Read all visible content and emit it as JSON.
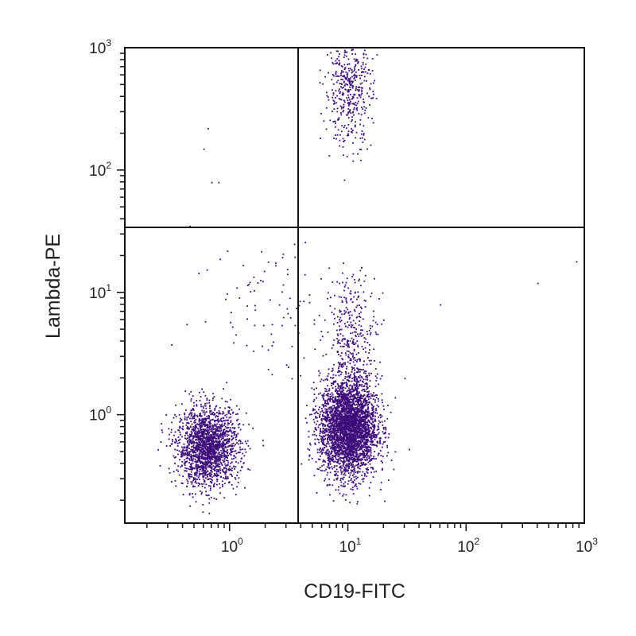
{
  "chart_data": {
    "type": "scatter",
    "title": "",
    "xlabel": "CD19-FITC",
    "ylabel": "Lambda-PE",
    "xscale": "log",
    "yscale": "log",
    "xlim": [
      0.13,
      1000
    ],
    "ylim": [
      0.13,
      1000
    ],
    "x_ticks": [
      {
        "base": "10",
        "exp": "0",
        "value": 1
      },
      {
        "base": "10",
        "exp": "1",
        "value": 10
      },
      {
        "base": "10",
        "exp": "2",
        "value": 100
      },
      {
        "base": "10",
        "exp": "3",
        "value": 1000
      }
    ],
    "y_ticks": [
      {
        "base": "10",
        "exp": "0",
        "value": 1
      },
      {
        "base": "10",
        "exp": "1",
        "value": 10
      },
      {
        "base": "10",
        "exp": "2",
        "value": 100
      },
      {
        "base": "10",
        "exp": "3",
        "value": 1000
      }
    ],
    "quadrant_gates": {
      "x": 3.8,
      "y": 34
    },
    "grid": false,
    "legend": "none",
    "point_color": "#3d0a7a",
    "populations": [
      {
        "label": "CD19-negative, Lambda-negative",
        "center": [
          0.65,
          0.55
        ],
        "spread_log10": [
          0.13,
          0.16
        ],
        "count": 1900
      },
      {
        "label": "CD19-positive, Lambda-negative",
        "center": [
          10,
          0.8
        ],
        "spread_log10": [
          0.12,
          0.2
        ],
        "count": 3400
      },
      {
        "label": "CD19-positive, Lambda-negative (upper tail)",
        "center": [
          11,
          4.5
        ],
        "spread_log10": [
          0.1,
          0.25
        ],
        "count": 320
      },
      {
        "label": "CD19-positive, Lambda-positive",
        "center": [
          10,
          450
        ],
        "spread_log10": [
          0.1,
          0.22
        ],
        "count": 430
      },
      {
        "label": "sparse background",
        "center": [
          2.5,
          8
        ],
        "spread_log10": [
          0.35,
          0.3
        ],
        "count": 90
      }
    ],
    "outlier_points": [
      [
        0.65,
        220
      ],
      [
        0.6,
        150
      ],
      [
        0.7,
        80
      ],
      [
        0.8,
        80
      ],
      [
        0.95,
        22
      ],
      [
        400,
        12
      ],
      [
        850,
        18
      ],
      [
        60,
        8
      ],
      [
        30,
        2
      ],
      [
        3.5,
        25
      ]
    ]
  }
}
